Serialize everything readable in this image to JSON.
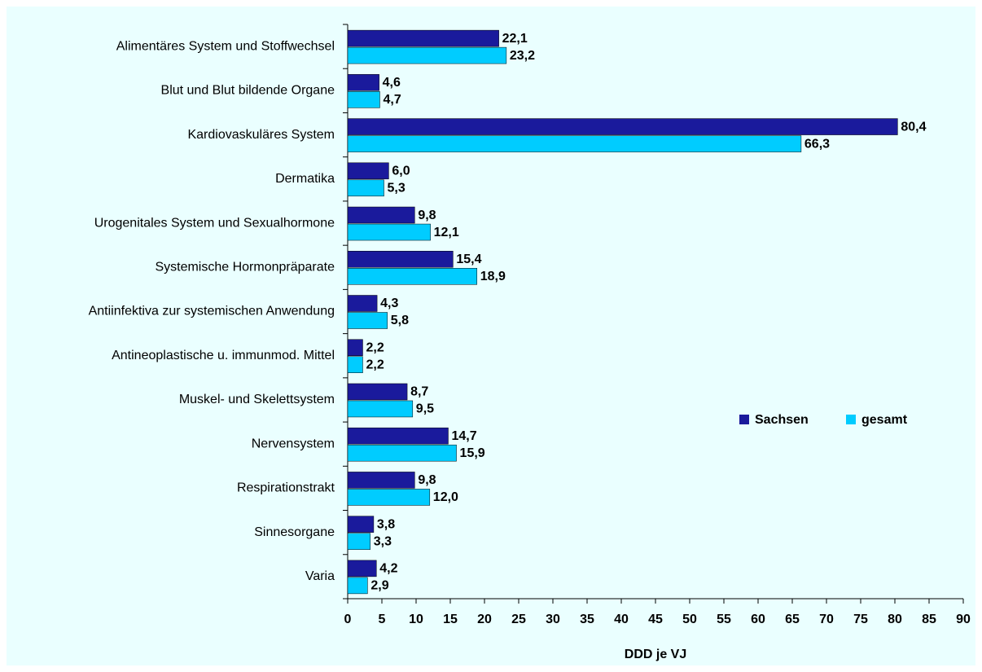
{
  "chart_data": {
    "type": "hbar",
    "xlabel": "DDD je VJ",
    "categories": [
      "Alimentäres System und Stoffwechsel",
      "Blut und Blut bildende Organe",
      "Kardiovaskuläres System",
      "Dermatika",
      "Urogenitales System und Sexualhormone",
      "Systemische Hormonpräparate",
      "Antiinfektiva zur systemischen Anwendung",
      "Antineoplastische u. immunmod. Mittel",
      "Muskel- und Skelettsystem",
      "Nervensystem",
      "Respirationstrakt",
      "Sinnesorgane",
      "Varia"
    ],
    "series": [
      {
        "name": "Sachsen",
        "color": "#1a1a9c",
        "values": [
          22.1,
          4.6,
          80.4,
          6.0,
          9.8,
          15.4,
          4.3,
          2.2,
          8.7,
          14.7,
          9.8,
          3.8,
          4.2
        ],
        "value_labels": [
          "22,1",
          "4,6",
          "80,4",
          "6,0",
          "9,8",
          "15,4",
          "4,3",
          "2,2",
          "8,7",
          "14,7",
          "9,8",
          "3,8",
          "4,2"
        ]
      },
      {
        "name": "gesamt",
        "color": "#00ccff",
        "values": [
          23.2,
          4.7,
          66.3,
          5.3,
          12.1,
          18.9,
          5.8,
          2.2,
          9.5,
          15.9,
          12.0,
          3.3,
          2.9
        ],
        "value_labels": [
          "23,2",
          "4,7",
          "66,3",
          "5,3",
          "12,1",
          "18,9",
          "5,8",
          "2,2",
          "9,5",
          "15,9",
          "12,0",
          "3,3",
          "2,9"
        ]
      }
    ],
    "xlim": [
      0,
      90
    ],
    "xticks": [
      0,
      5,
      10,
      15,
      20,
      25,
      30,
      35,
      40,
      45,
      50,
      55,
      60,
      65,
      70,
      75,
      80,
      85,
      90
    ],
    "grid": false,
    "legend": "right"
  }
}
